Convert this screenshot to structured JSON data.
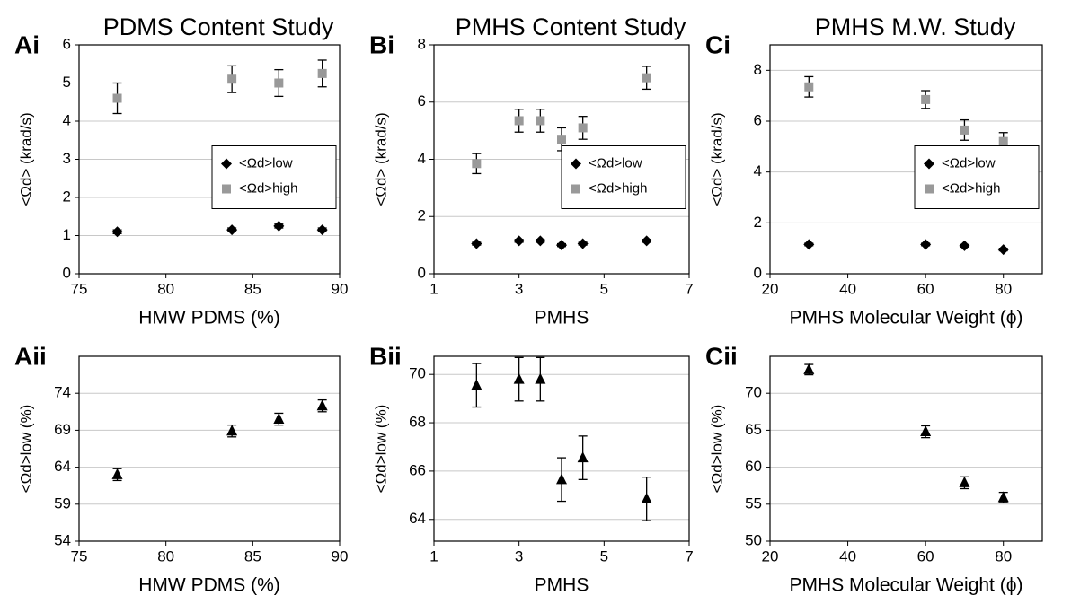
{
  "chart_data": [
    {
      "type": "scatter",
      "title": "PDMS Content Study",
      "panel_label": "Ai",
      "x_label": "HMW PDMS (%)",
      "y_label": "<Ωd> (krad/s)",
      "xlim": [
        75,
        90
      ],
      "xticks": [
        75,
        80,
        85,
        90
      ],
      "ylim": [
        0,
        6
      ],
      "yticks": [
        0,
        1,
        2,
        3,
        4,
        5,
        6
      ],
      "grid": true,
      "legend": "center right",
      "series": [
        {
          "name": "<Ωd>low",
          "color": "#000000",
          "marker": "diamond",
          "x": [
            77.2,
            83.8,
            86.5,
            89
          ],
          "values": [
            1.1,
            1.15,
            1.25,
            1.15
          ],
          "errors": [
            0.05,
            0.05,
            0.05,
            0.05
          ]
        },
        {
          "name": "<Ωd>high",
          "color": "#999999",
          "marker": "square",
          "x": [
            77.2,
            83.8,
            86.5,
            89
          ],
          "values": [
            4.6,
            5.1,
            5.0,
            5.25
          ],
          "errors": [
            0.4,
            0.35,
            0.35,
            0.35
          ]
        }
      ]
    },
    {
      "type": "scatter",
      "panel_label": "Aii",
      "x_label": "HMW PDMS (%)",
      "y_label": "<Ωd>low (%)",
      "xlim": [
        75,
        90
      ],
      "xticks": [
        75,
        80,
        85,
        90
      ],
      "ylim": [
        54,
        79
      ],
      "yticks": [
        54,
        59,
        64,
        69,
        74
      ],
      "grid": true,
      "series": [
        {
          "color": "#000000",
          "marker": "triangle",
          "x": [
            77.2,
            83.8,
            86.5,
            89
          ],
          "values": [
            63.0,
            68.9,
            70.5,
            72.3
          ],
          "errors": [
            0.8,
            0.8,
            0.8,
            0.8
          ]
        }
      ]
    },
    {
      "type": "scatter",
      "title": "PMHS Content Study",
      "panel_label": "Bi",
      "x_label": "PMHS",
      "y_label": "<Ωd> (krad/s)",
      "xlim": [
        1,
        7
      ],
      "xticks": [
        1,
        3,
        5,
        7
      ],
      "ylim": [
        0,
        8
      ],
      "yticks": [
        0,
        2,
        4,
        6,
        8
      ],
      "grid": true,
      "legend": "center right",
      "series": [
        {
          "name": "<Ωd>low",
          "color": "#000000",
          "marker": "diamond",
          "x": [
            2,
            3,
            3.5,
            4,
            4.5,
            6
          ],
          "values": [
            1.05,
            1.15,
            1.15,
            1.0,
            1.05,
            1.15
          ],
          "errors": [
            0.05,
            0.05,
            0.05,
            0.05,
            0.05,
            0.05
          ]
        },
        {
          "name": "<Ωd>high",
          "color": "#999999",
          "marker": "square",
          "x": [
            2,
            3,
            3.5,
            4,
            4.5,
            6
          ],
          "values": [
            3.85,
            5.35,
            5.35,
            4.7,
            5.1,
            6.85
          ],
          "errors": [
            0.35,
            0.4,
            0.4,
            0.4,
            0.4,
            0.4
          ]
        }
      ]
    },
    {
      "type": "scatter",
      "panel_label": "Bii",
      "x_label": "PMHS",
      "y_label": "<Ωd>low (%)",
      "xlim": [
        1,
        7
      ],
      "xticks": [
        1,
        3,
        5,
        7
      ],
      "ylim": [
        63.1,
        70.75
      ],
      "yticks": [
        64,
        66,
        68,
        70
      ],
      "grid": true,
      "series": [
        {
          "color": "#000000",
          "marker": "triangle",
          "x": [
            2,
            3,
            3.5,
            4,
            4.5,
            6
          ],
          "values": [
            69.55,
            69.8,
            69.8,
            65.65,
            66.55,
            64.85
          ],
          "errors": [
            0.9,
            0.9,
            0.9,
            0.9,
            0.9,
            0.9
          ]
        }
      ]
    },
    {
      "type": "scatter",
      "title": "PMHS M.W. Study",
      "panel_label": "Ci",
      "x_label": "PMHS Molecular Weight (ϕ)",
      "y_label": "<Ωd> (krad/s)",
      "xlim": [
        20,
        90
      ],
      "xticks": [
        20,
        40,
        60,
        80
      ],
      "ylim": [
        0,
        9
      ],
      "yticks": [
        0,
        2,
        4,
        6,
        8
      ],
      "grid": true,
      "legend": "center right",
      "series": [
        {
          "name": "<Ωd>low",
          "color": "#000000",
          "marker": "diamond",
          "x": [
            30,
            60,
            70,
            80
          ],
          "values": [
            1.15,
            1.15,
            1.1,
            0.95
          ],
          "errors": [
            0.05,
            0.05,
            0.05,
            0.05
          ]
        },
        {
          "name": "<Ωd>high",
          "color": "#999999",
          "marker": "square",
          "x": [
            30,
            60,
            70,
            80
          ],
          "values": [
            7.35,
            6.85,
            5.65,
            5.2
          ],
          "errors": [
            0.4,
            0.35,
            0.4,
            0.35
          ]
        }
      ]
    },
    {
      "type": "scatter",
      "panel_label": "Cii",
      "x_label": "PMHS Molecular Weight (ϕ)",
      "y_label": "<Ωd>low (%)",
      "xlim": [
        20,
        90
      ],
      "xticks": [
        20,
        40,
        60,
        80
      ],
      "ylim": [
        50,
        75
      ],
      "yticks": [
        50,
        55,
        60,
        65,
        70
      ],
      "grid": true,
      "series": [
        {
          "color": "#000000",
          "marker": "triangle",
          "x": [
            30,
            60,
            70,
            80
          ],
          "values": [
            73.2,
            64.8,
            57.9,
            55.9
          ],
          "errors": [
            0.7,
            0.8,
            0.8,
            0.7
          ]
        }
      ]
    }
  ]
}
